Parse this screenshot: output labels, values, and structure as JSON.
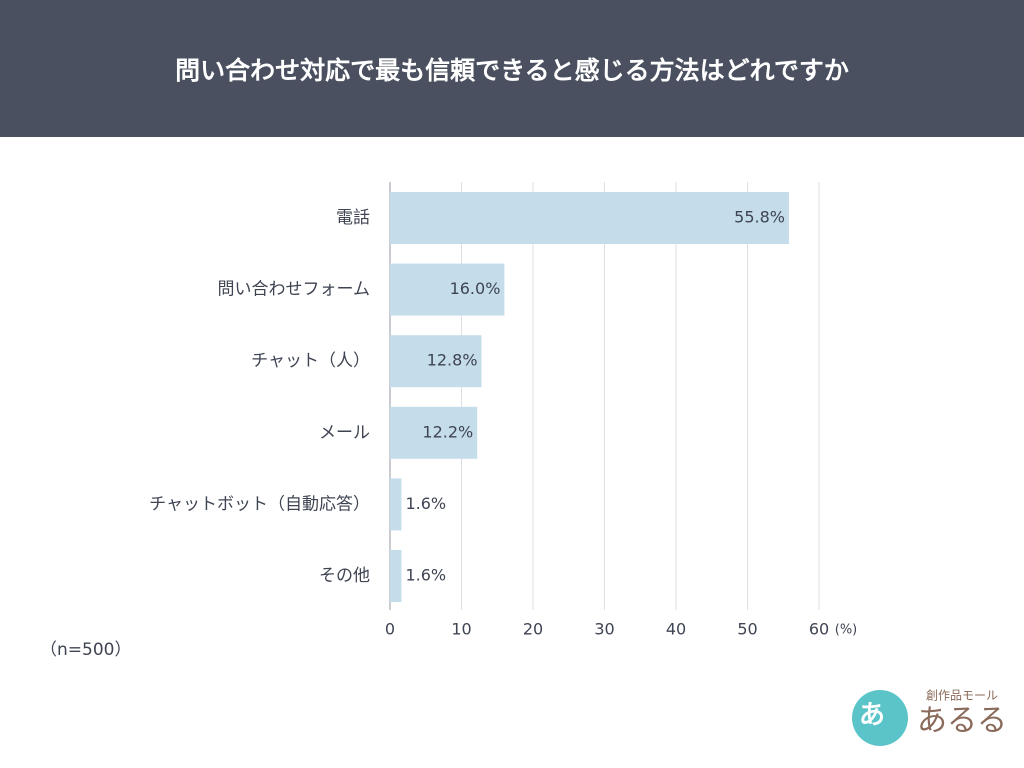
{
  "chart_data": {
    "type": "barh",
    "title": "問い合わせ対応で最も信頼できると感じる方法はどれですか",
    "categories": [
      "電話",
      "問い合わせフォーム",
      "チャット（人）",
      "メール",
      "チャットボット（自動応答）",
      "その他"
    ],
    "values": [
      55.8,
      16.0,
      12.8,
      12.2,
      1.6,
      1.6
    ],
    "value_labels": [
      "55.8%",
      "16.0%",
      "12.8%",
      "12.2%",
      "1.6%",
      "1.6%"
    ],
    "color": "#c5dceb",
    "xlim": [
      0,
      60
    ],
    "xticks": [
      0,
      10,
      20,
      30,
      40,
      50,
      60
    ],
    "grid": true,
    "x_unit": "(%)",
    "note": "（n=500）"
  },
  "logo": {
    "mark": "あ",
    "tagline": "創作品モール",
    "name": "あるる"
  }
}
